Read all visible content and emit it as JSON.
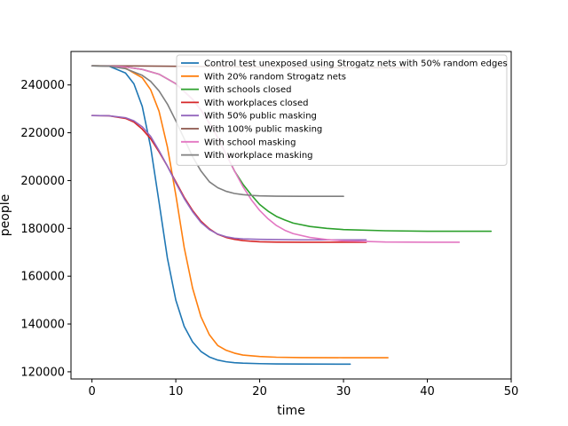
{
  "chart_data": {
    "type": "line",
    "title": "",
    "xlabel": "time",
    "ylabel": "people",
    "xlim": [
      -2.5,
      50
    ],
    "ylim": [
      117000,
      254000
    ],
    "xticks": [
      0,
      10,
      20,
      30,
      40,
      50
    ],
    "xtick_labels": [
      "0",
      "10",
      "20",
      "30",
      "40",
      "50"
    ],
    "yticks": [
      120000,
      140000,
      160000,
      180000,
      200000,
      220000,
      240000
    ],
    "ytick_labels": [
      "120000",
      "140000",
      "160000",
      "180000",
      "200000",
      "220000",
      "240000"
    ],
    "grid": false,
    "legend_position": "top-right",
    "series": [
      {
        "name": "Control test unexposed using Strogatz nets with 50% random edges",
        "color": "#1f77b4",
        "x": [
          0,
          2,
          4,
          5,
          6,
          7,
          8,
          9,
          10,
          11,
          12,
          13,
          14,
          15,
          16,
          17,
          18,
          20,
          22,
          25,
          30,
          30.8
        ],
        "y": [
          248000,
          247900,
          245000,
          240500,
          231000,
          214000,
          191000,
          167500,
          150000,
          139000,
          132500,
          128500,
          126200,
          124900,
          124200,
          123800,
          123600,
          123400,
          123300,
          123250,
          123200,
          123200
        ]
      },
      {
        "name": "With 20% random Strogatz nets",
        "color": "#ff7f0e",
        "x": [
          0,
          2,
          4,
          6,
          7,
          8,
          9,
          10,
          11,
          12,
          13,
          14,
          15,
          16,
          17,
          18,
          20,
          22,
          25,
          30,
          35.3
        ],
        "y": [
          248000,
          247950,
          247000,
          243000,
          238000,
          229000,
          214000,
          194000,
          172000,
          155000,
          143000,
          135500,
          131000,
          129000,
          127800,
          127000,
          126400,
          126100,
          125950,
          125900,
          125900
        ]
      },
      {
        "name": "With schools closed",
        "color": "#2ca02c",
        "x": [
          0,
          2,
          4,
          6,
          8,
          10,
          12,
          13,
          14,
          15,
          16,
          17,
          18,
          19,
          20,
          21,
          22,
          23,
          24,
          26,
          28,
          30,
          35,
          40,
          47.6
        ],
        "y": [
          248000,
          247900,
          247500,
          246500,
          244500,
          240500,
          234000,
          229500,
          224000,
          218000,
          211000,
          204000,
          198500,
          194000,
          190000,
          187200,
          185000,
          183500,
          182200,
          180800,
          180000,
          179500,
          179000,
          178800,
          178800
        ]
      },
      {
        "name": "With workplaces closed",
        "color": "#d62728",
        "x": [
          0,
          2,
          4,
          5,
          6,
          7,
          8,
          9,
          10,
          11,
          12,
          13,
          14,
          15,
          16,
          17,
          18,
          19,
          20,
          22,
          25,
          30,
          32.7
        ],
        "y": [
          227200,
          227100,
          226000,
          224500,
          221500,
          217500,
          212000,
          206000,
          199500,
          193000,
          187500,
          183000,
          179800,
          177500,
          176200,
          175400,
          174900,
          174600,
          174400,
          174250,
          174200,
          174200,
          174200
        ]
      },
      {
        "name": "With 50% public masking",
        "color": "#9467bd",
        "x": [
          0,
          2,
          4,
          5,
          6,
          7,
          8,
          9,
          10,
          11,
          12,
          13,
          14,
          15,
          16,
          17,
          18,
          20,
          22,
          25,
          30,
          32.7
        ],
        "y": [
          227200,
          227100,
          226300,
          225000,
          222500,
          218500,
          212500,
          206000,
          199000,
          192500,
          187000,
          182500,
          179500,
          177600,
          176500,
          175900,
          175600,
          175400,
          175300,
          175200,
          175200,
          175200
        ]
      },
      {
        "name": "With 100% public masking",
        "color": "#8c564b",
        "x": [
          0,
          5,
          10,
          15,
          20,
          25,
          30,
          35,
          37.8
        ],
        "y": [
          248000,
          247950,
          247800,
          247650,
          247500,
          247400,
          247300,
          247250,
          247200
        ]
      },
      {
        "name": "With school masking",
        "color": "#e377c2",
        "x": [
          0,
          2,
          4,
          6,
          8,
          10,
          12,
          13,
          14,
          15,
          16,
          17,
          18,
          19,
          20,
          21,
          22,
          23,
          24,
          26,
          28,
          30,
          35,
          40,
          43.8
        ],
        "y": [
          248000,
          247900,
          247500,
          246500,
          244500,
          240500,
          234000,
          229500,
          224000,
          218000,
          211000,
          204000,
          197500,
          192000,
          187500,
          184000,
          181200,
          179200,
          177800,
          176200,
          175300,
          174800,
          174300,
          174200,
          174200
        ]
      },
      {
        "name": "With workplace masking",
        "color": "#7f7f7f",
        "x": [
          0,
          2,
          4,
          6,
          7,
          8,
          9,
          10,
          11,
          12,
          13,
          14,
          15,
          16,
          17,
          18,
          19,
          20,
          22,
          25,
          30
        ],
        "y": [
          248000,
          247900,
          246800,
          244000,
          241500,
          237500,
          232000,
          225000,
          217500,
          210000,
          204000,
          199500,
          197000,
          195500,
          194600,
          194100,
          193800,
          193600,
          193450,
          193400,
          193400
        ]
      }
    ]
  }
}
